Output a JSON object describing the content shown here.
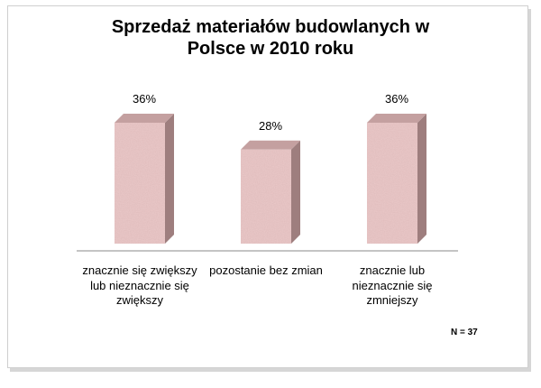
{
  "chart_data": {
    "type": "bar",
    "title_lines": [
      "Sprzedaż materiałów budowlanych w",
      "Polsce w 2010 roku"
    ],
    "categories": [
      "znacznie się zwiększy lub nieznacznie się zwiększy",
      "pozostanie bez zmian",
      "znacznie lub nieznacznie się zmniejszy"
    ],
    "values": [
      36,
      28,
      36
    ],
    "value_labels": [
      "36%",
      "28%",
      "36%"
    ],
    "unit": "%",
    "ylim": [
      0,
      40
    ],
    "grid": false,
    "legend": "none",
    "note": "N = 37",
    "colors": {
      "bar_front": "#ebc9c9",
      "bar_top": "#c4a0a0",
      "bar_side": "#9e7e7e",
      "axis": "#8a8a8a"
    }
  }
}
